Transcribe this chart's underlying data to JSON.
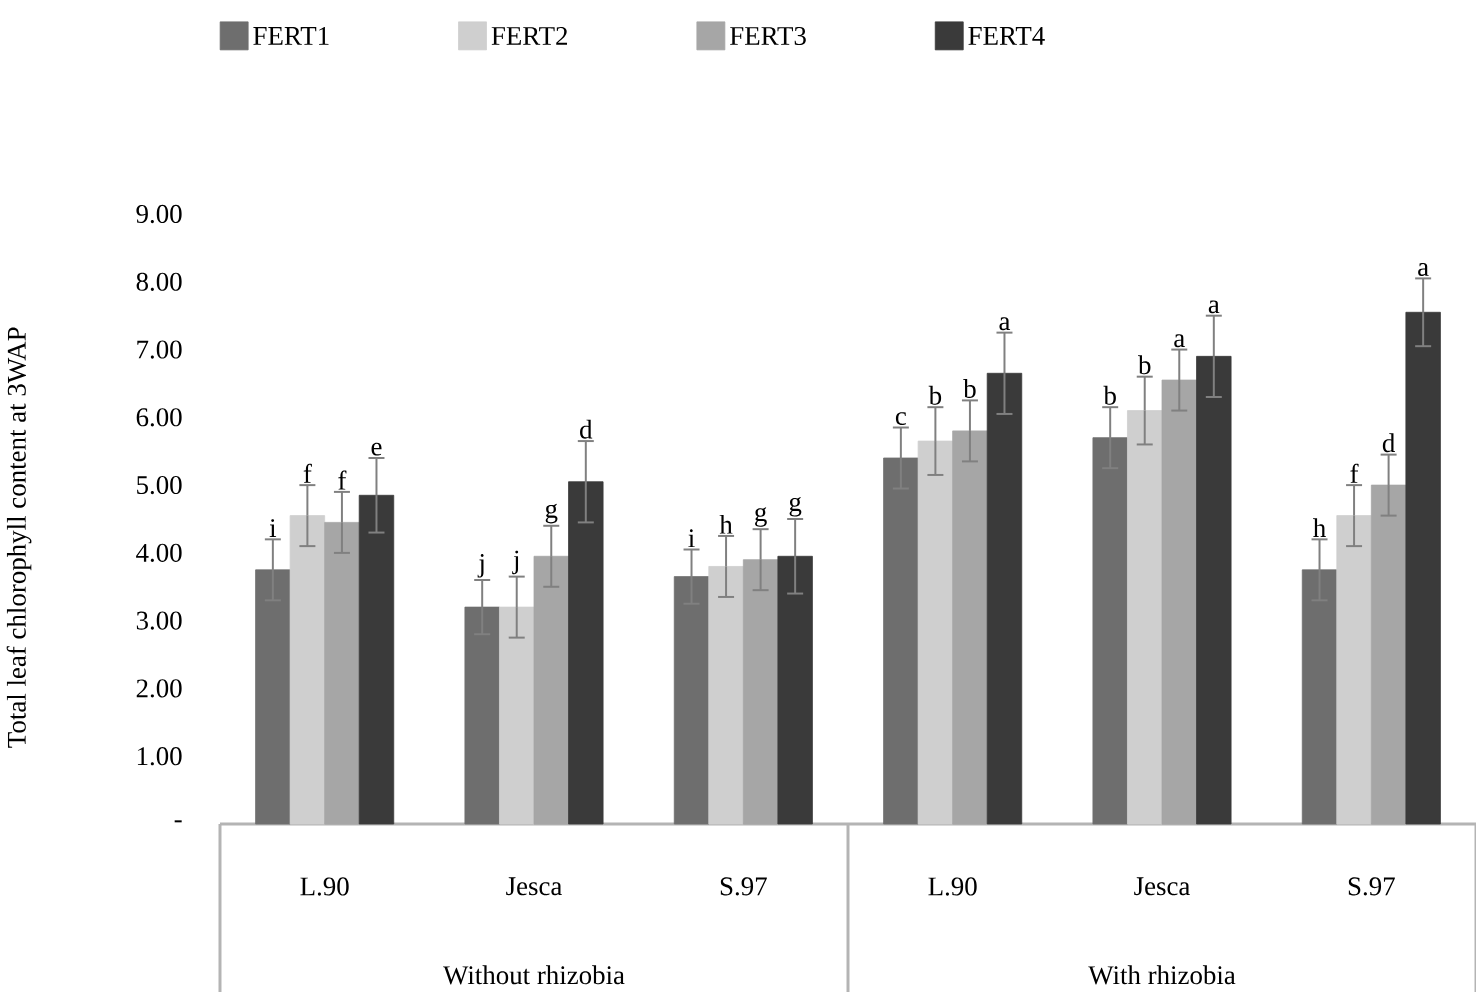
{
  "chart_data": {
    "type": "bar",
    "ylabel": "Total leaf chlorophyll content at 3WAP",
    "categories": [
      "L.90",
      "Jesca",
      "S.97",
      "L.90",
      "Jesca",
      "S.97"
    ],
    "series": [
      {
        "name": "FERT1",
        "color": "#6e6e6e",
        "values": [
          3.75,
          3.2,
          3.65,
          5.4,
          5.7,
          3.75
        ],
        "errors": [
          0.45,
          0.4,
          0.4,
          0.45,
          0.45,
          0.45
        ],
        "value_labels": [
          "i",
          "j",
          "i",
          "c",
          "b",
          "h"
        ]
      },
      {
        "name": "FERT2",
        "color": "#cfcfcf",
        "values": [
          4.55,
          3.2,
          3.8,
          5.65,
          6.1,
          4.55
        ],
        "errors": [
          0.45,
          0.45,
          0.45,
          0.5,
          0.5,
          0.45
        ],
        "value_labels": [
          "f",
          "j",
          "h",
          "b",
          "b",
          "f"
        ]
      },
      {
        "name": "FERT3",
        "color": "#a6a6a6",
        "values": [
          4.45,
          3.95,
          3.9,
          5.8,
          6.55,
          5.0
        ],
        "errors": [
          0.45,
          0.45,
          0.45,
          0.45,
          0.45,
          0.45
        ],
        "value_labels": [
          "f",
          "g",
          "g",
          "b",
          "a",
          "d"
        ]
      },
      {
        "name": "FERT4",
        "color": "#3a3a3a",
        "values": [
          4.85,
          5.05,
          3.95,
          6.65,
          6.9,
          7.55
        ],
        "errors": [
          0.55,
          0.6,
          0.55,
          0.6,
          0.6,
          0.5
        ],
        "value_labels": [
          "e",
          "d",
          "g",
          "a",
          "a",
          "a"
        ]
      }
    ],
    "ylim": [
      0,
      9
    ],
    "yticks": [
      {
        "value": 0,
        "label": "-"
      },
      {
        "value": 1,
        "label": "1.00"
      },
      {
        "value": 2,
        "label": "2.00"
      },
      {
        "value": 3,
        "label": "3.00"
      },
      {
        "value": 4,
        "label": "4.00"
      },
      {
        "value": 5,
        "label": "5.00"
      },
      {
        "value": 6,
        "label": "6.00"
      },
      {
        "value": 7,
        "label": "7.00"
      },
      {
        "value": 8,
        "label": "8.00"
      },
      {
        "value": 9,
        "label": "9.00"
      }
    ],
    "legend": "top",
    "annotations": [
      "Without rhizobia",
      "With rhizobia"
    ]
  }
}
